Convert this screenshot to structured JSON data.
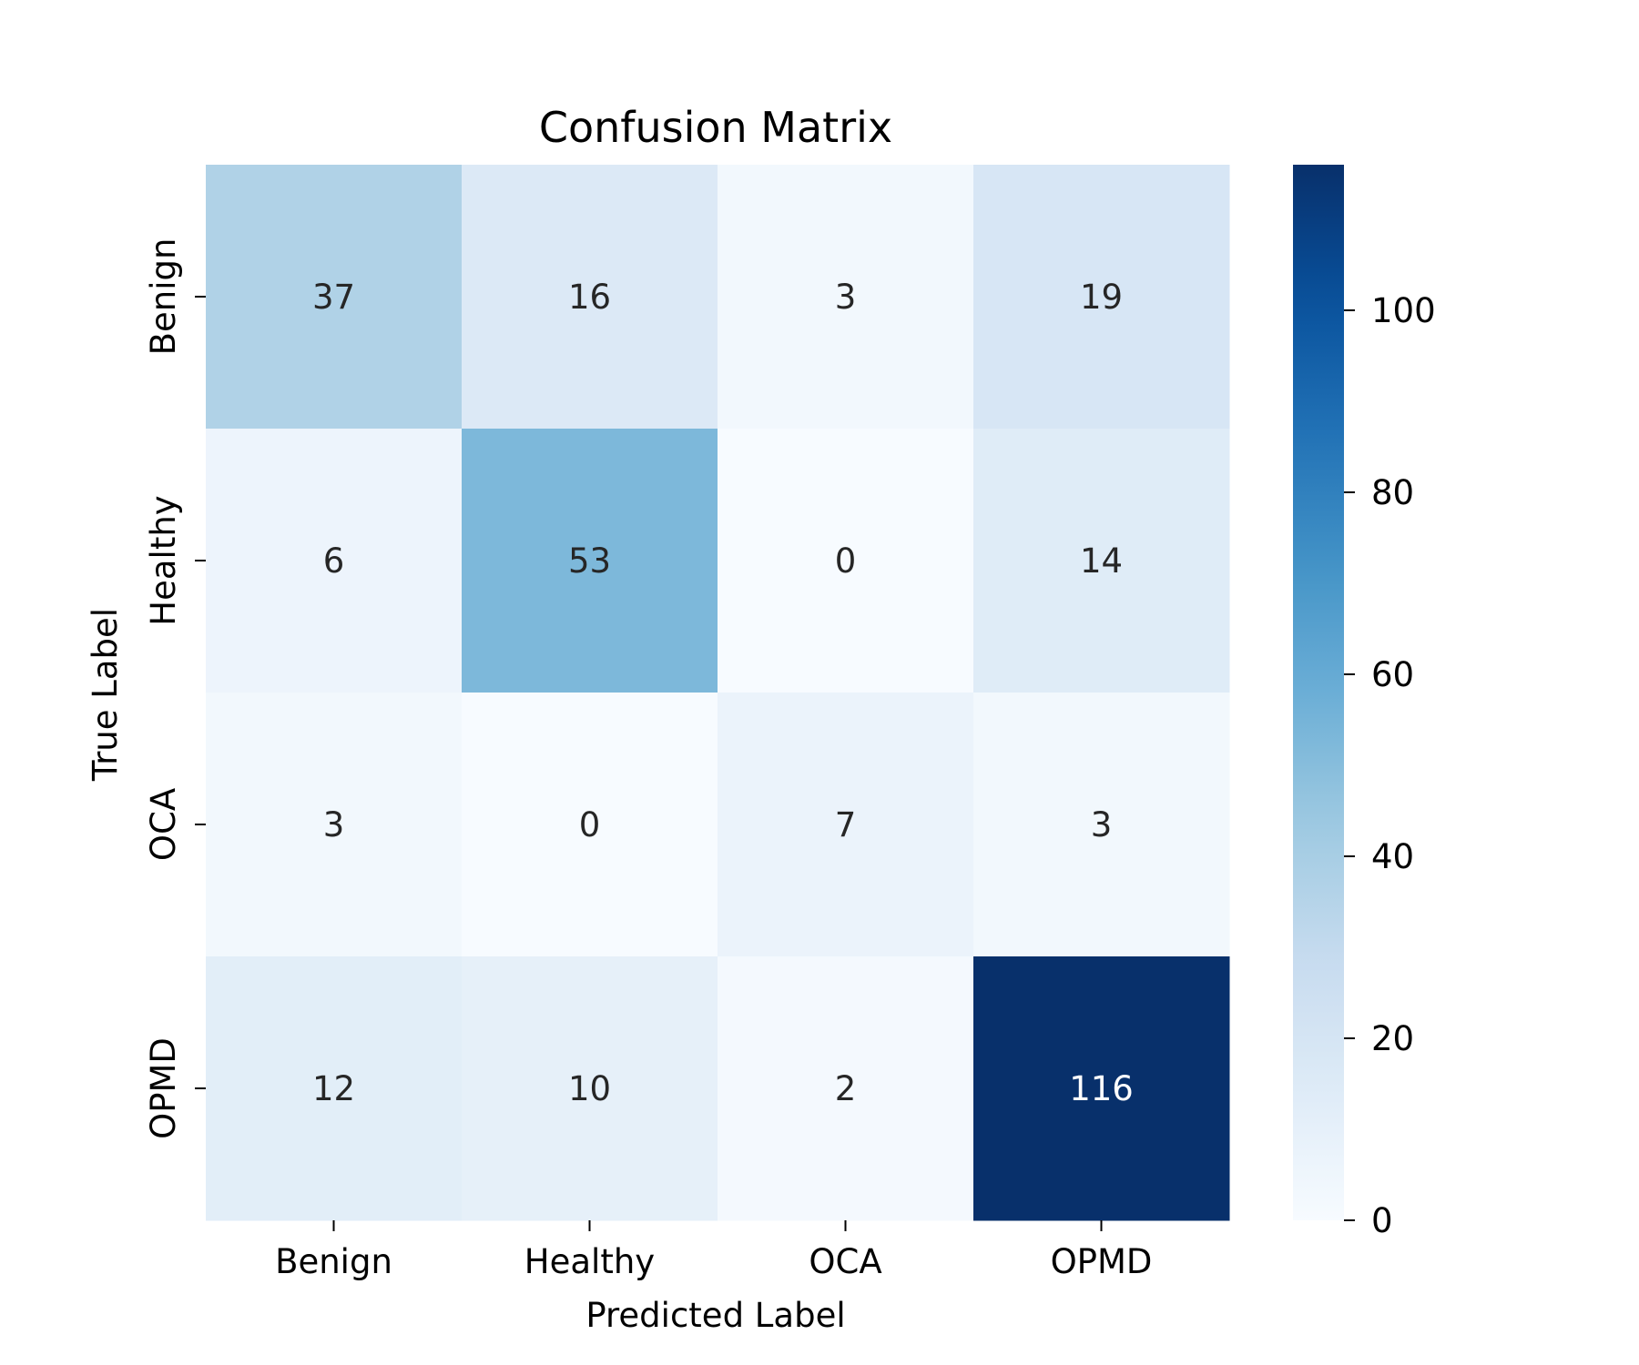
{
  "chart_data": {
    "type": "heatmap",
    "title": "Confusion Matrix",
    "xlabel": "Predicted Label",
    "ylabel": "True Label",
    "x_categories": [
      "Benign",
      "Healthy",
      "OCA",
      "OPMD"
    ],
    "y_categories": [
      "Benign",
      "Healthy",
      "OCA",
      "OPMD"
    ],
    "values": [
      [
        37,
        16,
        3,
        19
      ],
      [
        6,
        53,
        0,
        14
      ],
      [
        3,
        0,
        7,
        3
      ],
      [
        12,
        10,
        2,
        116
      ]
    ],
    "colormap": "Blues",
    "colorbar": {
      "range": [
        0,
        116
      ],
      "ticks": [
        0,
        20,
        40,
        60,
        80,
        100
      ]
    },
    "grid": false,
    "legend": "colorbar-right"
  }
}
